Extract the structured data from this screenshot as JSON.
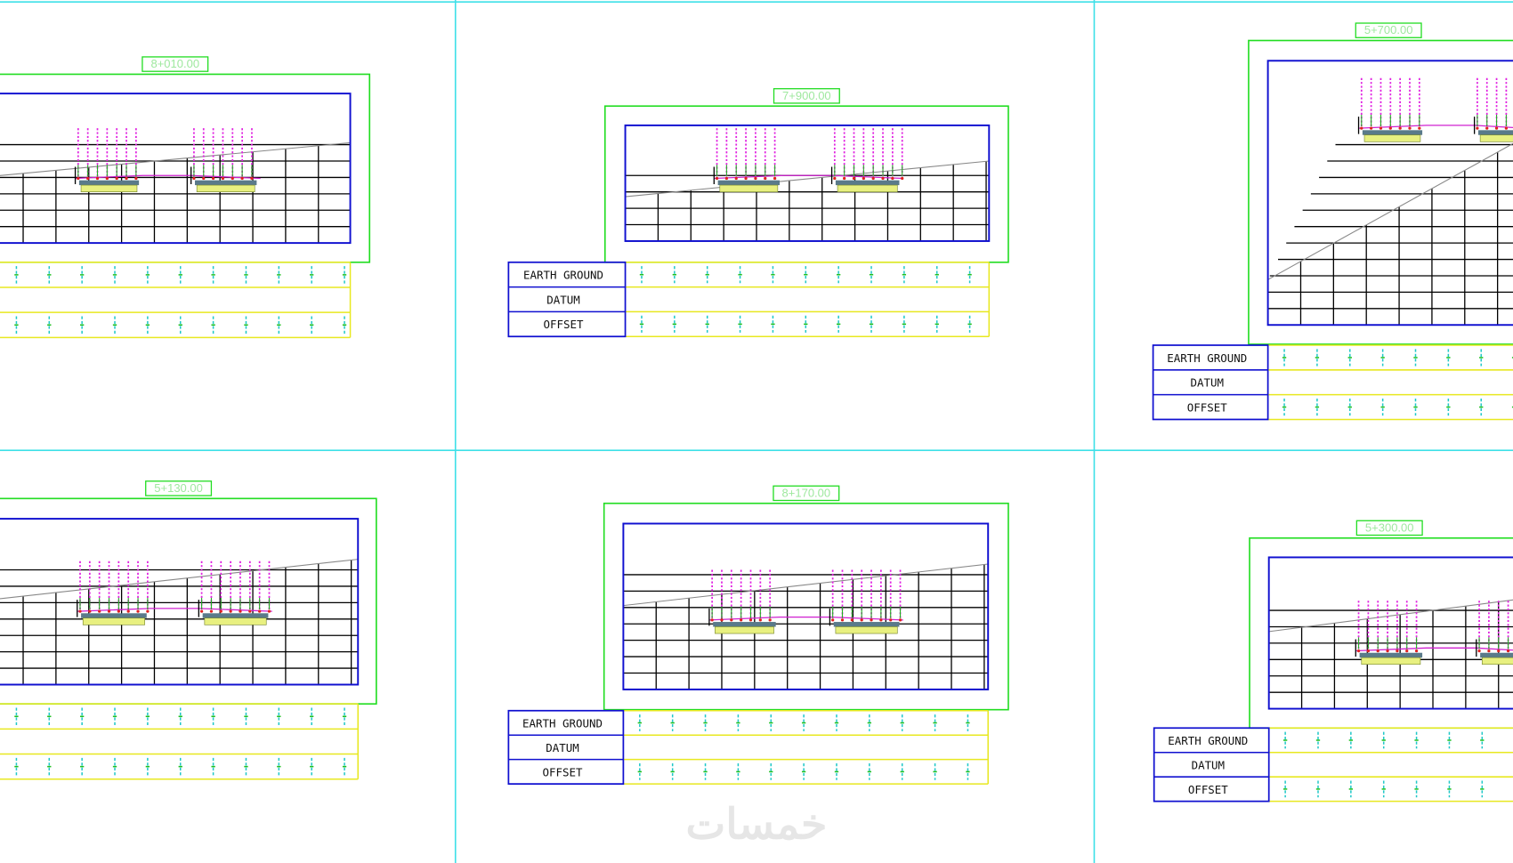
{
  "panels": [
    {
      "station": "8+010.00"
    },
    {
      "station": "7+900.00",
      "rows": [
        "EARTH GROUND",
        "DATUM",
        "OFFSET"
      ]
    },
    {
      "station": "5+700.00",
      "rows": [
        "EARTH GROUND",
        "DATUM",
        "OFFSET"
      ]
    },
    {
      "station": "5+130.00"
    },
    {
      "station": "8+170.00",
      "rows": [
        "EARTH GROUND",
        "DATUM",
        "OFFSET"
      ]
    },
    {
      "station": "5+300.00",
      "rows": [
        "EARTH GROUND",
        "DATUM",
        "OFFSET"
      ]
    }
  ],
  "watermark": "خمسات"
}
